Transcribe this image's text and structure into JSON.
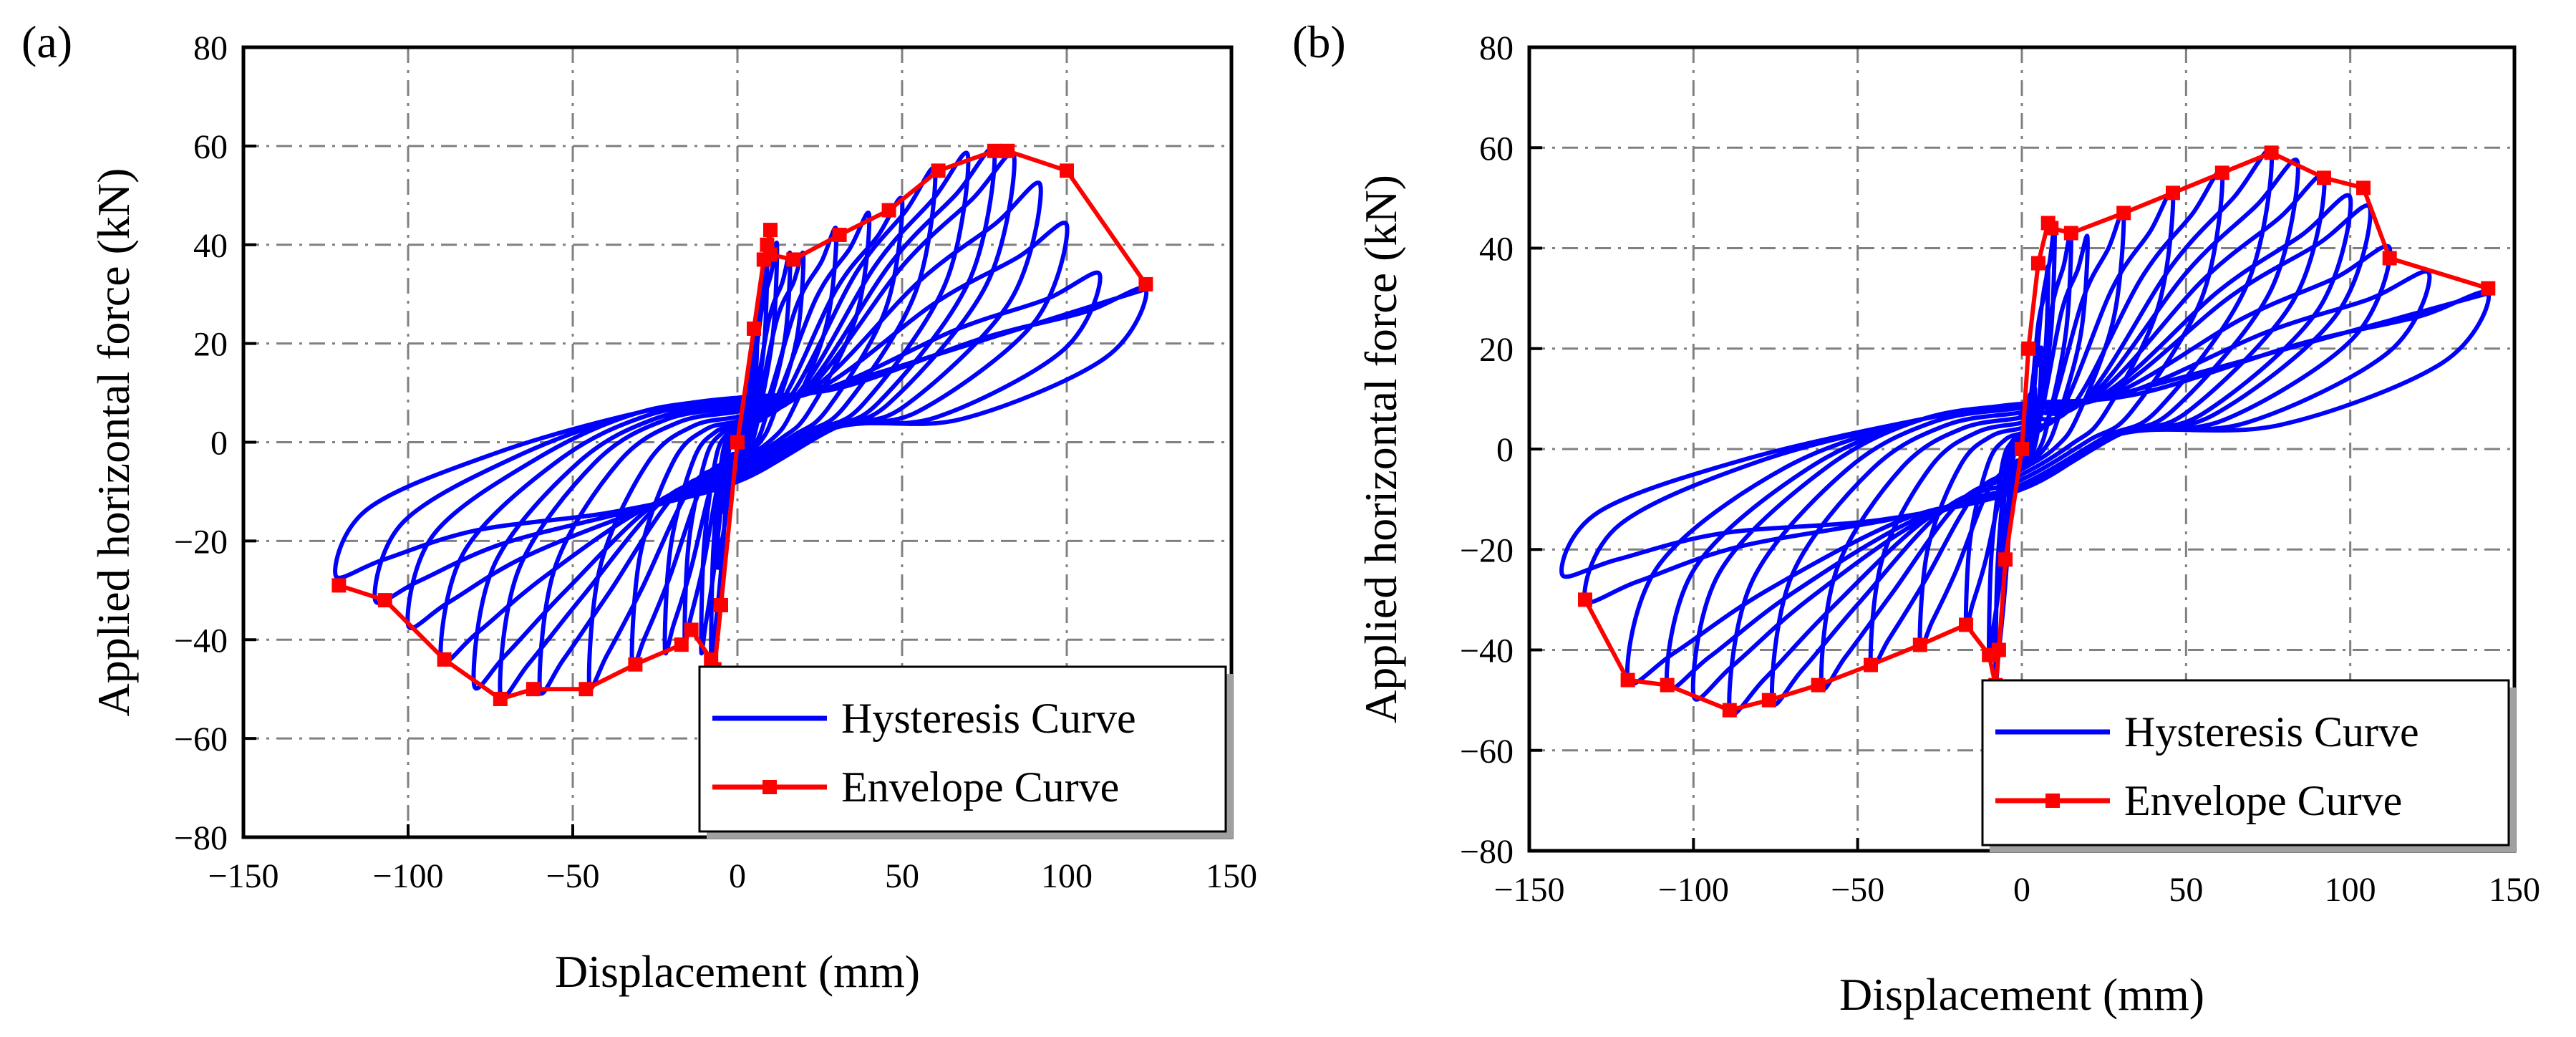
{
  "colors": {
    "hysteresis": "#0000ff",
    "envelope": "#ff0000",
    "grid": "#808080",
    "frame": "#000000"
  },
  "chart_data": [
    {
      "panel_label": "(a)",
      "type": "line",
      "xlabel": "Displacement (mm)",
      "ylabel": "Applied horizontal force (kN)",
      "xlim": [
        -150,
        150
      ],
      "ylim": [
        -80,
        80
      ],
      "xticks": [
        -150,
        -100,
        -50,
        0,
        50,
        100,
        150
      ],
      "yticks": [
        -80,
        -60,
        -40,
        -20,
        0,
        20,
        40,
        60,
        80
      ],
      "grid": true,
      "legend": "bottom-right",
      "series": [
        {
          "name": "Hysteresis Curve",
          "kind": "hysteresis",
          "pos_peaks": [
            [
              4,
              12
            ],
            [
              6,
              22
            ],
            [
              9,
              36
            ],
            [
              12,
              40
            ],
            [
              16,
              38
            ],
            [
              20,
              38
            ],
            [
              30,
              43
            ],
            [
              40,
              46
            ],
            [
              50,
              49
            ],
            [
              60,
              55
            ],
            [
              70,
              58
            ],
            [
              78,
              59
            ],
            [
              84,
              58
            ],
            [
              92,
              52
            ],
            [
              100,
              44
            ],
            [
              110,
              34
            ],
            [
              124,
              31
            ]
          ],
          "neg_peaks": [
            [
              -4,
              -14
            ],
            [
              -6,
              -25
            ],
            [
              -8,
              -45
            ],
            [
              -11,
              -42
            ],
            [
              -16,
              -40
            ],
            [
              -22,
              -42
            ],
            [
              -32,
              -45
            ],
            [
              -45,
              -49
            ],
            [
              -60,
              -50
            ],
            [
              -72,
              -51
            ],
            [
              -80,
              -49
            ],
            [
              -90,
              -44
            ],
            [
              -100,
              -37
            ],
            [
              -110,
              -32
            ],
            [
              -122,
              -27
            ]
          ],
          "pos_unload_end": [
            60,
            4
          ],
          "neg_unload_end": [
            -60,
            5
          ]
        },
        {
          "name": "Envelope Curve",
          "kind": "envelope",
          "x": [
            -121,
            -107,
            -89,
            -72,
            -62,
            -46,
            -31,
            -17,
            -14,
            -8,
            -7,
            -5,
            0,
            5,
            8,
            9,
            10,
            10,
            17,
            31,
            46,
            61,
            78,
            82,
            100,
            124
          ],
          "y": [
            -29,
            -32,
            -44,
            -52,
            -50,
            -50,
            -45,
            -41,
            -38,
            -44,
            -46,
            -33,
            0,
            23,
            37,
            40,
            43,
            38,
            37,
            42,
            47,
            55,
            59,
            59,
            55,
            32
          ]
        }
      ]
    },
    {
      "panel_label": "(b)",
      "type": "line",
      "xlabel": "Displacement (mm)",
      "ylabel": "Applied horizontal force (kN)",
      "xlim": [
        -150,
        150
      ],
      "ylim": [
        -80,
        80
      ],
      "xticks": [
        -150,
        -100,
        -50,
        0,
        50,
        100,
        150
      ],
      "yticks": [
        -80,
        -60,
        -40,
        -20,
        0,
        20,
        40,
        60,
        80
      ],
      "grid": true,
      "legend": "bottom-right",
      "series": [
        {
          "name": "Hysteresis Curve",
          "kind": "hysteresis",
          "pos_peaks": [
            [
              4,
              12
            ],
            [
              6,
              20
            ],
            [
              8,
              36
            ],
            [
              10,
              44
            ],
            [
              15,
              43
            ],
            [
              20,
              42
            ],
            [
              31,
              47
            ],
            [
              46,
              51
            ],
            [
              61,
              55
            ],
            [
              76,
              59
            ],
            [
              84,
              57
            ],
            [
              92,
              54
            ],
            [
              100,
              50
            ],
            [
              106,
              48
            ],
            [
              112,
              40
            ],
            [
              124,
              35
            ],
            [
              142,
              31
            ]
          ],
          "neg_peaks": [
            [
              -4,
              -14
            ],
            [
              -6,
              -22
            ],
            [
              -8,
              -46
            ],
            [
              -10,
              -41
            ],
            [
              -17,
              -35
            ],
            [
              -31,
              -39
            ],
            [
              -46,
              -43
            ],
            [
              -61,
              -47
            ],
            [
              -76,
              -50
            ],
            [
              -89,
              -52
            ],
            [
              -100,
              -49
            ],
            [
              -108,
              -47
            ],
            [
              -120,
              -46
            ],
            [
              -133,
              -30
            ],
            [
              -140,
              -25
            ]
          ],
          "pos_unload_end": [
            60,
            4
          ],
          "neg_unload_end": [
            -60,
            5
          ]
        },
        {
          "name": "Envelope Curve",
          "kind": "envelope",
          "x": [
            -133,
            -120,
            -108,
            -89,
            -77,
            -62,
            -46,
            -31,
            -17,
            -10,
            -8,
            -7,
            -5,
            0,
            2,
            5,
            8,
            9,
            15,
            31,
            46,
            61,
            76,
            92,
            104,
            112,
            142
          ],
          "y": [
            -30,
            -46,
            -47,
            -52,
            -50,
            -47,
            -43,
            -39,
            -35,
            -41,
            -47,
            -40,
            -22,
            0,
            20,
            37,
            45,
            44,
            43,
            47,
            51,
            55,
            59,
            54,
            52,
            38,
            32
          ]
        }
      ]
    }
  ]
}
